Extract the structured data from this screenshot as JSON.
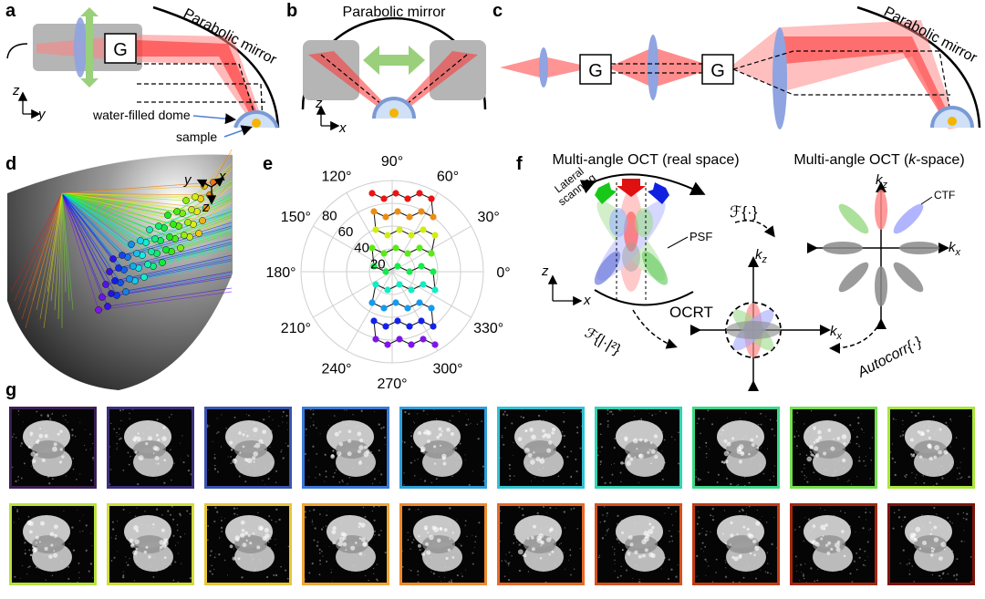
{
  "panels": {
    "a": {
      "label": "a",
      "mirror_label": "Parabolic mirror",
      "galvo": "G",
      "axis_z": "z",
      "axis_y": "y",
      "dome_label": "water-filled dome",
      "sample_label": "sample"
    },
    "b": {
      "label": "b",
      "mirror_label": "Parabolic mirror",
      "axis_z": "z",
      "axis_x": "x"
    },
    "c": {
      "label": "c",
      "mirror_label": "Parabolic mirror",
      "galvo1": "G",
      "galvo2": "G"
    },
    "d": {
      "label": "d",
      "axis_y": "y",
      "axis_x": "x",
      "axis_z": "z"
    },
    "e": {
      "label": "e",
      "angle_labels": [
        "90°",
        "60°",
        "30°",
        "0°",
        "330°",
        "300°",
        "270°",
        "240°",
        "210°",
        "180°",
        "150°",
        "120°"
      ],
      "radial_labels": [
        "20",
        "40",
        "60",
        "80"
      ]
    },
    "f": {
      "label": "f",
      "title_real": "Multi-angle OCT (real space)",
      "title_k_prefix": "Multi-angle OCT (",
      "title_k_italic": "k",
      "title_k_suffix": "-space)",
      "lateral_1": "Lateral",
      "lateral_2": "scanning",
      "psf": "PSF",
      "ctf": "CTF",
      "fourier": "ℱ{·}",
      "fourier_abs": "ℱ{|·|²}",
      "autocorr": "Autocorr{·}",
      "ocrt": "OCRT",
      "kz": "k",
      "kz_sub": "z",
      "kx": "k",
      "kx_sub": "x",
      "axis_z": "z",
      "axis_x": "x"
    },
    "g": {
      "label": "g",
      "border_colors_row1": [
        "#3a1f52",
        "#39307a",
        "#3b53b0",
        "#3a78d8",
        "#2f9ed8",
        "#2ec3d3",
        "#2fd4b4",
        "#3ad886",
        "#74de4e",
        "#a8e63c"
      ],
      "border_colors_row2": [
        "#b9e23b",
        "#d2dc3a",
        "#e8c635",
        "#f0a632",
        "#ef8a2c",
        "#e76a25",
        "#d8501d",
        "#c23a14",
        "#a5260e",
        "#7e1409"
      ]
    }
  }
}
